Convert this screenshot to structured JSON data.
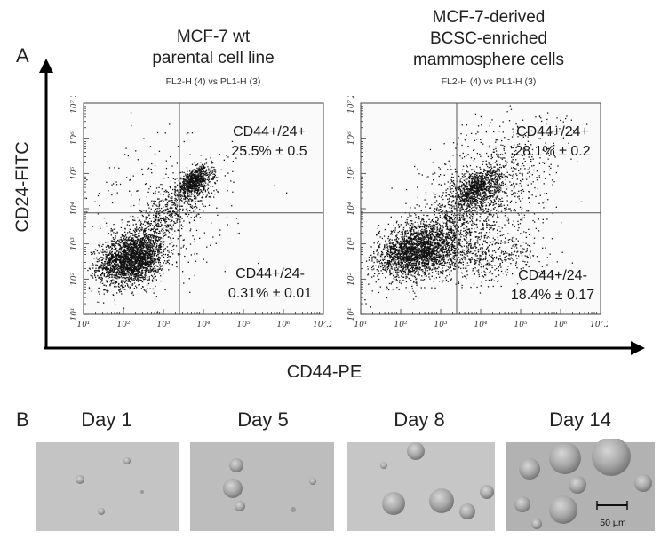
{
  "panel_a": {
    "letter": "A",
    "y_axis_label": "CD24-FITC",
    "x_axis_label": "CD44-PE",
    "plots": [
      {
        "title_lines": [
          "MCF-7 wt",
          "parental cell line"
        ],
        "subtitle": "FL2-H (4) vs PL1-H (3)",
        "upper_right_lines": [
          "CD44+/24+",
          "25.5% ± 0.5"
        ],
        "lower_right_lines": [
          "CD44+/24-",
          "0.31% ± 0.01"
        ]
      },
      {
        "title_lines": [
          "MCF-7-derived",
          "BCSC-enriched",
          "mammosphere cells"
        ],
        "subtitle": "FL2-H (4) vs PL1-H (3)",
        "upper_right_lines": [
          "CD44+/24+",
          "28.1% ± 0.2"
        ],
        "lower_right_lines": [
          "CD44+/24-",
          "18.4% ± 0.17"
        ]
      }
    ],
    "x_ticks": [
      "10¹",
      "10²",
      "10³",
      "10⁴",
      "10⁵",
      "10⁶",
      "10⁷.2"
    ],
    "y_ticks": [
      "10¹",
      "10²",
      "10³",
      "10⁴",
      "10⁵",
      "10⁶",
      "10⁷.2"
    ]
  },
  "panel_b": {
    "letter": "B",
    "days": [
      "Day 1",
      "Day 5",
      "Day 8",
      "Day 14"
    ],
    "scale_bar_label": "50 µm"
  }
}
